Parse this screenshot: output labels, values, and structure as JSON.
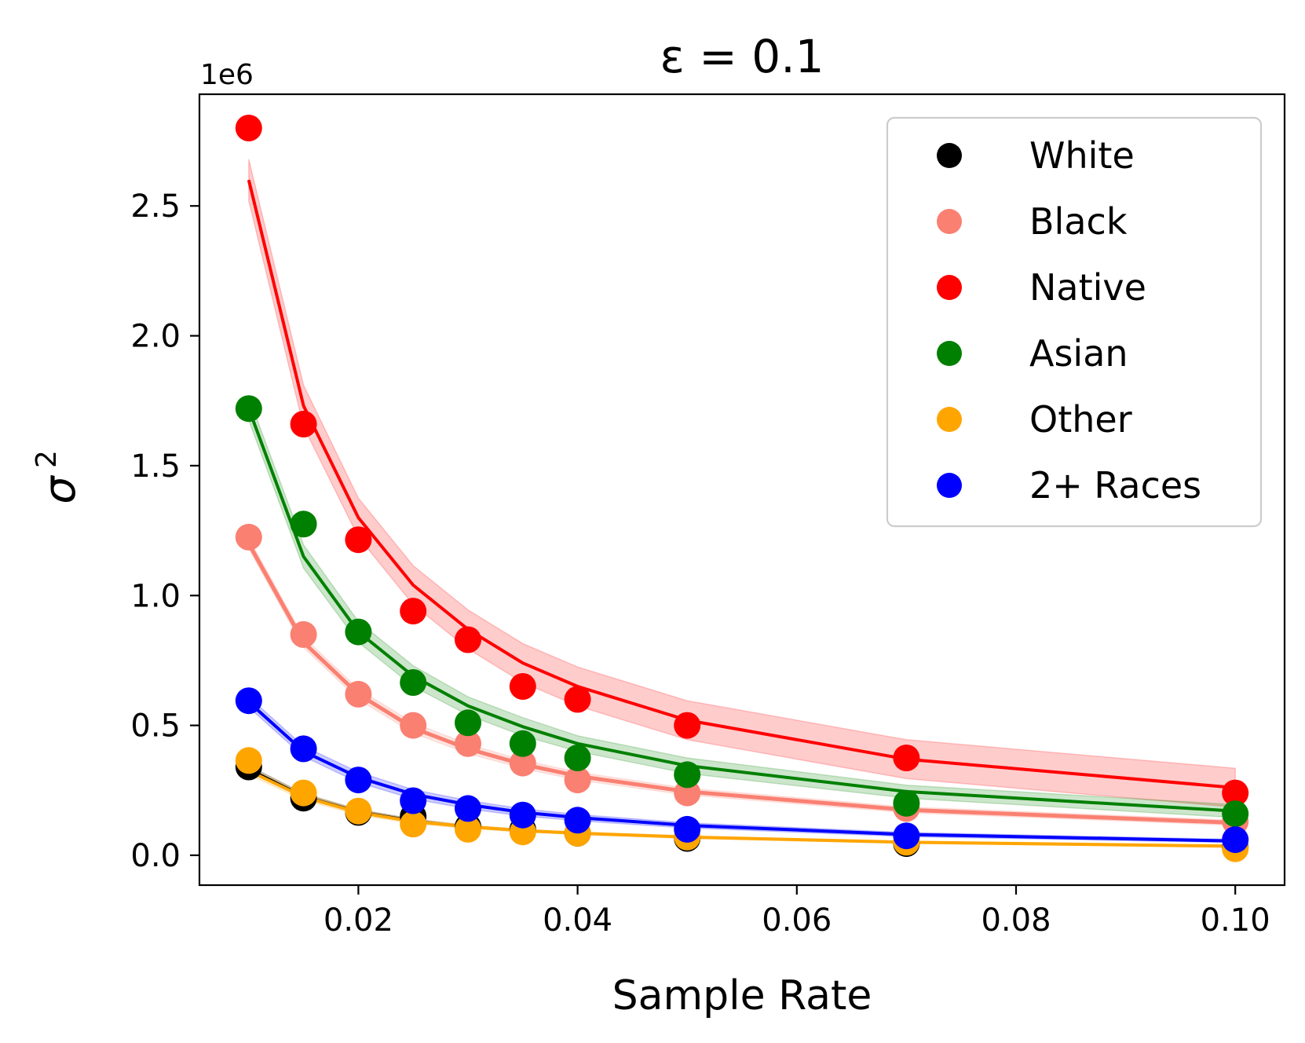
{
  "chart_data": {
    "type": "scatter",
    "title": "ε = 0.1",
    "xlabel": "Sample Rate",
    "ylabel": "σ",
    "ylabel_superscript": "2",
    "y_offset_label": "1e6",
    "xlim": [
      0.0055,
      0.1045
    ],
    "ylim": [
      -0.115,
      2.93
    ],
    "y_unit_multiplier": 1000000,
    "x_ticks": [
      0.02,
      0.04,
      0.06,
      0.08,
      0.1
    ],
    "x_tick_labels": [
      "0.02",
      "0.04",
      "0.06",
      "0.08",
      "0.10"
    ],
    "y_ticks": [
      0.0,
      0.5,
      1.0,
      1.5,
      2.0,
      2.5
    ],
    "y_tick_labels": [
      "0.0",
      "0.5",
      "1.0",
      "1.5",
      "2.0",
      "2.5"
    ],
    "grid": false,
    "legend_position": "top-right",
    "x": [
      0.01,
      0.015,
      0.02,
      0.025,
      0.03,
      0.035,
      0.04,
      0.05,
      0.07,
      0.1
    ],
    "series": [
      {
        "name": "White",
        "color": "#000000",
        "points": [
          0.34,
          0.22,
          0.165,
          0.15,
          0.11,
          0.1,
          0.085,
          0.065,
          0.045,
          0.03
        ],
        "fit": [
          0.335,
          0.23,
          0.17,
          0.135,
          0.11,
          0.095,
          0.085,
          0.07,
          0.05,
          0.035
        ],
        "band": [
          0.01,
          0.008,
          0.006,
          0.005,
          0.004,
          0.004,
          0.003,
          0.003,
          0.002,
          0.002
        ],
        "fit_width": 1.5
      },
      {
        "name": "Black",
        "color": "#fa8072",
        "points": [
          1.225,
          0.85,
          0.62,
          0.5,
          0.43,
          0.355,
          0.29,
          0.24,
          0.18,
          0.13
        ],
        "fit": [
          1.2,
          0.82,
          0.62,
          0.49,
          0.41,
          0.35,
          0.305,
          0.245,
          0.175,
          0.125
        ],
        "band": [
          0.02,
          0.02,
          0.02,
          0.02,
          0.018,
          0.016,
          0.015,
          0.013,
          0.011,
          0.01
        ],
        "fit_width": 5
      },
      {
        "name": "Native",
        "color": "#ff0000",
        "points": [
          2.8,
          1.66,
          1.215,
          0.94,
          0.83,
          0.65,
          0.6,
          0.5,
          0.375,
          0.24
        ],
        "fit": [
          2.6,
          1.73,
          1.3,
          1.04,
          0.87,
          0.74,
          0.65,
          0.52,
          0.37,
          0.26
        ],
        "band": [
          0.08,
          0.08,
          0.075,
          0.075,
          0.075,
          0.075,
          0.075,
          0.075,
          0.075,
          0.075
        ],
        "fit_width": 4
      },
      {
        "name": "Asian",
        "color": "#008000",
        "points": [
          1.72,
          1.275,
          0.86,
          0.665,
          0.51,
          0.43,
          0.375,
          0.31,
          0.2,
          0.16
        ],
        "fit": [
          1.72,
          1.15,
          0.86,
          0.69,
          0.575,
          0.495,
          0.43,
          0.345,
          0.245,
          0.17
        ],
        "band": [
          0.045,
          0.045,
          0.04,
          0.04,
          0.035,
          0.035,
          0.03,
          0.03,
          0.025,
          0.025
        ],
        "fit_width": 4
      },
      {
        "name": "Other",
        "color": "#ffa500",
        "points": [
          0.365,
          0.24,
          0.17,
          0.12,
          0.1,
          0.09,
          0.085,
          0.07,
          0.05,
          0.025
        ],
        "fit": [
          0.325,
          0.225,
          0.165,
          0.13,
          0.11,
          0.095,
          0.085,
          0.07,
          0.05,
          0.035
        ],
        "band": [
          0.015,
          0.012,
          0.01,
          0.008,
          0.007,
          0.006,
          0.005,
          0.005,
          0.004,
          0.004
        ],
        "fit_width": 4
      },
      {
        "name": "2+ Races",
        "color": "#0000ff",
        "points": [
          0.595,
          0.41,
          0.29,
          0.21,
          0.18,
          0.155,
          0.135,
          0.1,
          0.075,
          0.06
        ],
        "fit": [
          0.59,
          0.4,
          0.3,
          0.235,
          0.195,
          0.165,
          0.145,
          0.115,
          0.08,
          0.055
        ],
        "band": [
          0.02,
          0.02,
          0.02,
          0.018,
          0.016,
          0.014,
          0.012,
          0.01,
          0.008,
          0.006
        ],
        "fit_width": 4
      }
    ]
  }
}
